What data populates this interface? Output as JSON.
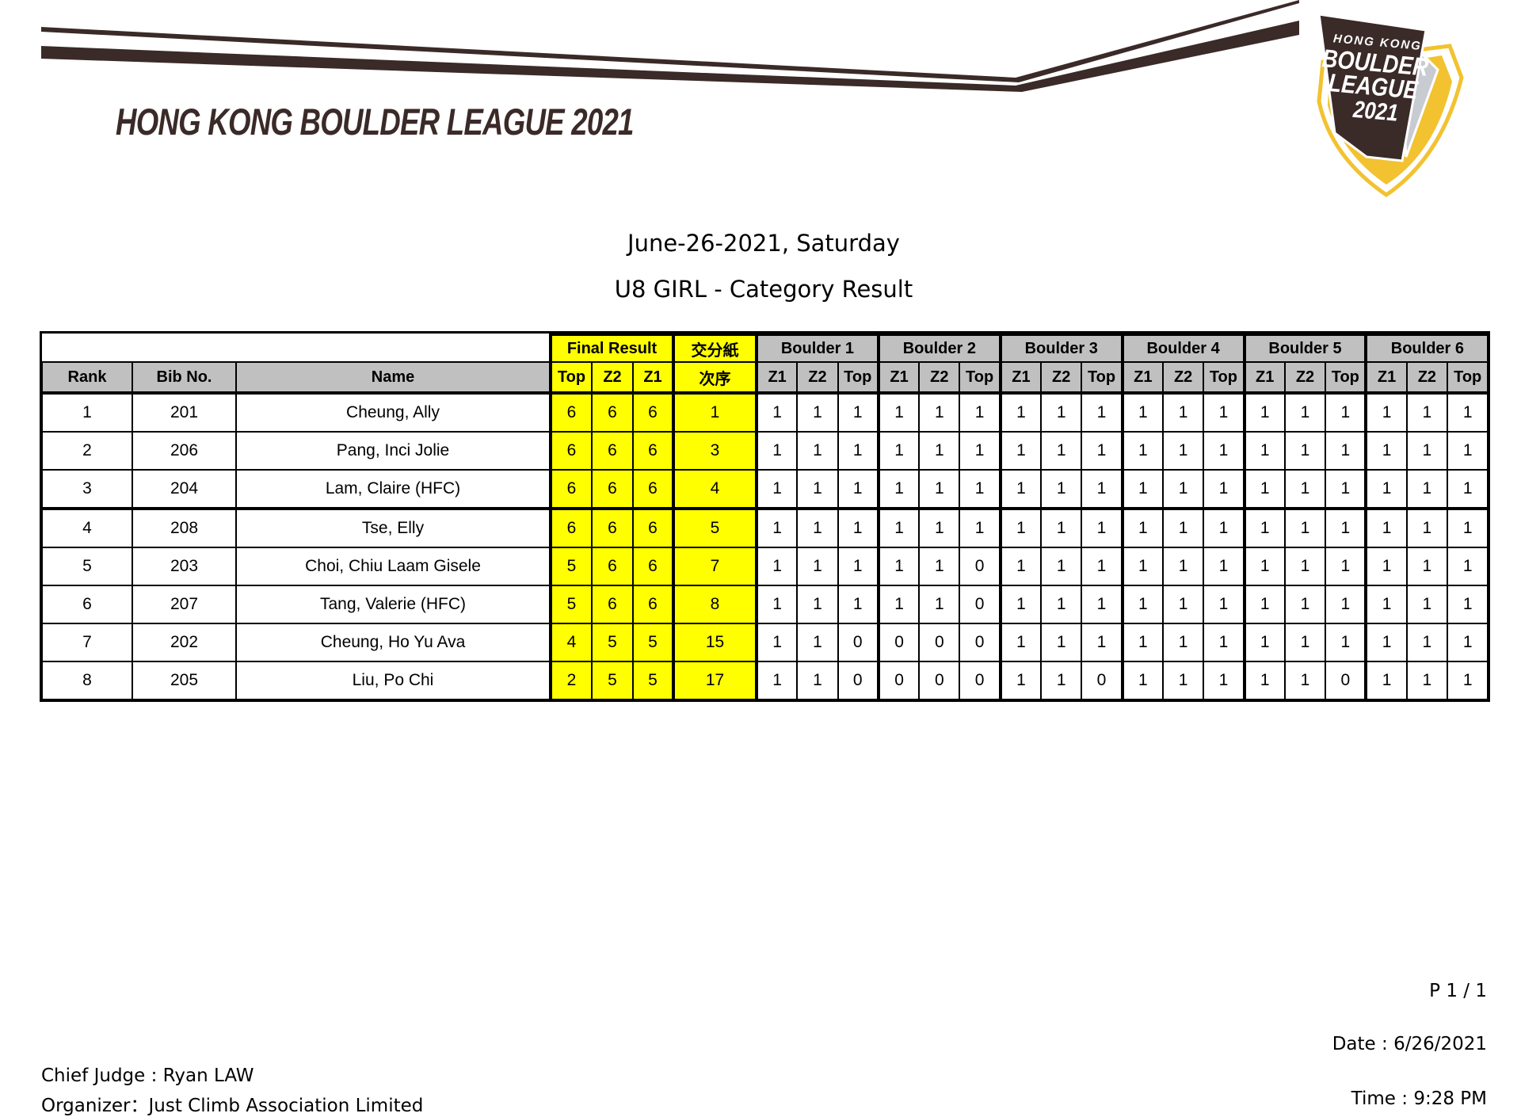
{
  "header": {
    "title": "HONG KONG BOULDER LEAGUE 2021",
    "logo_text": [
      "HONG KONG",
      "BOULDER",
      "LEAGUE",
      "2021"
    ],
    "date_line": "June-26-2021, Saturday",
    "category_line": "U8 GIRL - Category Result"
  },
  "colors": {
    "brand_brown": "#3a2a28",
    "brand_yellow": "#f2c230",
    "highlight": "#ffff00",
    "header_grey": "#c0c0c0"
  },
  "table": {
    "group_headers": {
      "final_result": "Final Result",
      "order_top": "交分紙",
      "boulders": [
        "Boulder 1",
        "Boulder 2",
        "Boulder 3",
        "Boulder 4",
        "Boulder 5",
        "Boulder 6"
      ]
    },
    "columns": {
      "rank": "Rank",
      "bib": "Bib No.",
      "name": "Name",
      "final": [
        "Top",
        "Z2",
        "Z1"
      ],
      "order_bottom": "次序",
      "boulder_sub": [
        "Z1",
        "Z2",
        "Top"
      ]
    },
    "rows": [
      {
        "rank": "1",
        "bib": "201",
        "name": "Cheung, Ally",
        "final": [
          "6",
          "6",
          "6"
        ],
        "order": "1",
        "boulders": [
          [
            "1",
            "1",
            "1"
          ],
          [
            "1",
            "1",
            "1"
          ],
          [
            "1",
            "1",
            "1"
          ],
          [
            "1",
            "1",
            "1"
          ],
          [
            "1",
            "1",
            "1"
          ],
          [
            "1",
            "1",
            "1"
          ]
        ]
      },
      {
        "rank": "2",
        "bib": "206",
        "name": "Pang, Inci Jolie",
        "final": [
          "6",
          "6",
          "6"
        ],
        "order": "3",
        "boulders": [
          [
            "1",
            "1",
            "1"
          ],
          [
            "1",
            "1",
            "1"
          ],
          [
            "1",
            "1",
            "1"
          ],
          [
            "1",
            "1",
            "1"
          ],
          [
            "1",
            "1",
            "1"
          ],
          [
            "1",
            "1",
            "1"
          ]
        ]
      },
      {
        "rank": "3",
        "bib": "204",
        "name": "Lam, Claire (HFC)",
        "final": [
          "6",
          "6",
          "6"
        ],
        "order": "4",
        "boulders": [
          [
            "1",
            "1",
            "1"
          ],
          [
            "1",
            "1",
            "1"
          ],
          [
            "1",
            "1",
            "1"
          ],
          [
            "1",
            "1",
            "1"
          ],
          [
            "1",
            "1",
            "1"
          ],
          [
            "1",
            "1",
            "1"
          ]
        ]
      },
      {
        "rank": "4",
        "bib": "208",
        "name": "Tse, Elly",
        "final": [
          "6",
          "6",
          "6"
        ],
        "order": "5",
        "boulders": [
          [
            "1",
            "1",
            "1"
          ],
          [
            "1",
            "1",
            "1"
          ],
          [
            "1",
            "1",
            "1"
          ],
          [
            "1",
            "1",
            "1"
          ],
          [
            "1",
            "1",
            "1"
          ],
          [
            "1",
            "1",
            "1"
          ]
        ]
      },
      {
        "rank": "5",
        "bib": "203",
        "name": "Choi, Chiu Laam Gisele",
        "final": [
          "5",
          "6",
          "6"
        ],
        "order": "7",
        "boulders": [
          [
            "1",
            "1",
            "1"
          ],
          [
            "1",
            "1",
            "0"
          ],
          [
            "1",
            "1",
            "1"
          ],
          [
            "1",
            "1",
            "1"
          ],
          [
            "1",
            "1",
            "1"
          ],
          [
            "1",
            "1",
            "1"
          ]
        ]
      },
      {
        "rank": "6",
        "bib": "207",
        "name": "Tang, Valerie (HFC)",
        "final": [
          "5",
          "6",
          "6"
        ],
        "order": "8",
        "boulders": [
          [
            "1",
            "1",
            "1"
          ],
          [
            "1",
            "1",
            "0"
          ],
          [
            "1",
            "1",
            "1"
          ],
          [
            "1",
            "1",
            "1"
          ],
          [
            "1",
            "1",
            "1"
          ],
          [
            "1",
            "1",
            "1"
          ]
        ]
      },
      {
        "rank": "7",
        "bib": "202",
        "name": "Cheung, Ho Yu Ava",
        "final": [
          "4",
          "5",
          "5"
        ],
        "order": "15",
        "boulders": [
          [
            "1",
            "1",
            "0"
          ],
          [
            "0",
            "0",
            "0"
          ],
          [
            "1",
            "1",
            "1"
          ],
          [
            "1",
            "1",
            "1"
          ],
          [
            "1",
            "1",
            "1"
          ],
          [
            "1",
            "1",
            "1"
          ]
        ]
      },
      {
        "rank": "8",
        "bib": "205",
        "name": "Liu, Po Chi",
        "final": [
          "2",
          "5",
          "5"
        ],
        "order": "17",
        "boulders": [
          [
            "1",
            "1",
            "0"
          ],
          [
            "0",
            "0",
            "0"
          ],
          [
            "1",
            "1",
            "0"
          ],
          [
            "1",
            "1",
            "1"
          ],
          [
            "1",
            "1",
            "0"
          ],
          [
            "1",
            "1",
            "1"
          ]
        ]
      }
    ]
  },
  "footer": {
    "page": "P 1 / 1",
    "date": "Date : 6/26/2021",
    "time": "Time : 9:28 PM",
    "chief_judge": "Chief Judge : Ryan LAW",
    "organizer": "Organizer：Just Climb Association Limited"
  }
}
